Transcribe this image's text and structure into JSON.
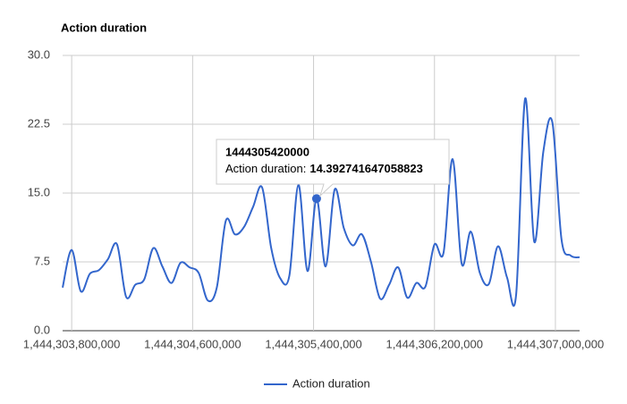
{
  "chart_data": {
    "type": "line",
    "title": "Action duration",
    "x": [
      1444303740000,
      1444303800000,
      1444303860000,
      1444303920000,
      1444303980000,
      1444304040000,
      1444304100000,
      1444304160000,
      1444304220000,
      1444304280000,
      1444304340000,
      1444304400000,
      1444304460000,
      1444304520000,
      1444304580000,
      1444304640000,
      1444304700000,
      1444304760000,
      1444304820000,
      1444304880000,
      1444304940000,
      1444305000000,
      1444305060000,
      1444305120000,
      1444305180000,
      1444305240000,
      1444305300000,
      1444305360000,
      1444305420000,
      1444305480000,
      1444305540000,
      1444305600000,
      1444305660000,
      1444305720000,
      1444305780000,
      1444305840000,
      1444305900000,
      1444305960000,
      1444306020000,
      1444306080000,
      1444306140000,
      1444306200000,
      1444306260000,
      1444306320000,
      1444306380000,
      1444306440000,
      1444306500000,
      1444306560000,
      1444306620000,
      1444306680000,
      1444306740000,
      1444306800000,
      1444306860000,
      1444306920000,
      1444306980000,
      1444307040000,
      1444307100000,
      1444307160000
    ],
    "series": [
      {
        "name": "Action duration",
        "color": "#3366cc",
        "values": [
          4.7,
          8.8,
          4.3,
          6.2,
          6.6,
          7.8,
          9.4,
          3.7,
          5.0,
          5.6,
          9.0,
          7.0,
          5.2,
          7.4,
          6.9,
          6.3,
          3.3,
          4.7,
          12.0,
          10.5,
          11.3,
          13.5,
          15.6,
          9.0,
          5.7,
          6.0,
          15.9,
          6.5,
          14.392741647058823,
          7.0,
          15.4,
          11.2,
          9.3,
          10.5,
          7.5,
          3.5,
          5.0,
          6.9,
          3.6,
          5.2,
          4.8,
          9.4,
          8.5,
          18.7,
          7.3,
          10.8,
          6.3,
          5.1,
          9.2,
          5.8,
          3.9,
          25.3,
          9.7,
          19.5,
          22.7,
          10.0,
          8.2,
          8.0
        ]
      }
    ],
    "xlim": [
      1444303740000,
      1444307160000
    ],
    "ylim": [
      0,
      30
    ],
    "xticks": [
      {
        "value": 1444303800000,
        "label": "1,444,303,800,000"
      },
      {
        "value": 1444304600000,
        "label": "1,444,304,600,000"
      },
      {
        "value": 1444305400000,
        "label": "1,444,305,400,000"
      },
      {
        "value": 1444306200000,
        "label": "1,444,306,200,000"
      },
      {
        "value": 1444307000000,
        "label": "1,444,307,000,000"
      }
    ],
    "yticks": [
      {
        "value": 0,
        "label": "0.0"
      },
      7.5,
      {
        "value": 15,
        "label": "15.0"
      },
      22.5,
      {
        "value": 30,
        "label": "30.0"
      }
    ],
    "grid": true,
    "legend": "bottom",
    "tooltip": {
      "index": 28,
      "label": "Action duration:"
    }
  }
}
